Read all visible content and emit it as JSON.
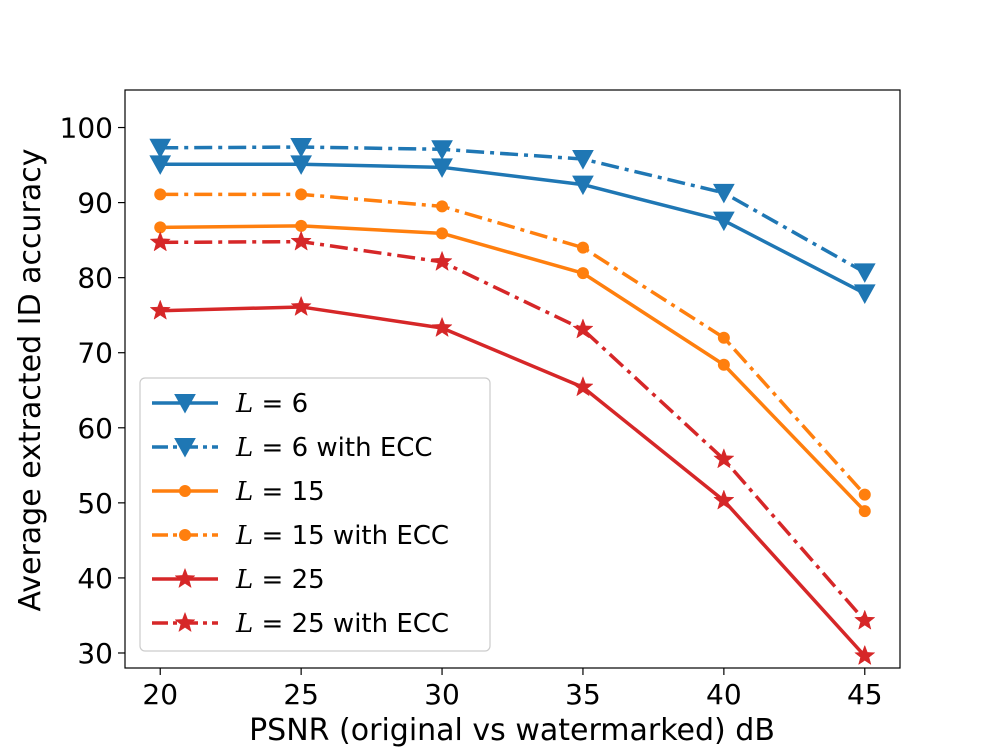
{
  "chart_data": {
    "type": "line",
    "title": "",
    "xlabel": "PSNR (original vs watermarked) dB",
    "ylabel": "Average extracted ID accuracy",
    "x": [
      20,
      25,
      30,
      35,
      40,
      45
    ],
    "xlim": [
      18.75,
      46.25
    ],
    "ylim": [
      28,
      105
    ],
    "xticks": [
      20,
      25,
      30,
      35,
      40,
      45
    ],
    "yticks": [
      30,
      40,
      50,
      60,
      70,
      80,
      90,
      100
    ],
    "grid": false,
    "legend_position": "lower-left",
    "series": [
      {
        "name": "L = 6",
        "label_var": "L",
        "label_rest": " = 6",
        "color": "#1f77b4",
        "style": "solid",
        "marker": "triangle-down",
        "values": [
          95.1,
          95.1,
          94.7,
          92.4,
          87.6,
          77.9
        ]
      },
      {
        "name": "L = 6 with ECC",
        "label_var": "L",
        "label_rest": " = 6 with ECC",
        "color": "#1f77b4",
        "style": "dashdot",
        "marker": "triangle-down",
        "values": [
          97.3,
          97.4,
          97.1,
          95.8,
          91.3,
          80.7
        ]
      },
      {
        "name": "L = 15",
        "label_var": "L",
        "label_rest": " = 15",
        "color": "#ff7f0e",
        "style": "solid",
        "marker": "circle",
        "values": [
          86.7,
          86.9,
          85.9,
          80.6,
          68.4,
          48.9
        ]
      },
      {
        "name": "L = 15 with ECC",
        "label_var": "L",
        "label_rest": " = 15 with ECC",
        "color": "#ff7f0e",
        "style": "dashdot",
        "marker": "circle",
        "values": [
          91.1,
          91.1,
          89.5,
          84.0,
          72.0,
          51.1
        ]
      },
      {
        "name": "L = 25",
        "label_var": "L",
        "label_rest": " = 25",
        "color": "#d62728",
        "style": "solid",
        "marker": "star",
        "values": [
          75.6,
          76.1,
          73.3,
          65.4,
          50.3,
          29.6
        ]
      },
      {
        "name": "L = 25 with ECC",
        "label_var": "L",
        "label_rest": " = 25 with ECC",
        "color": "#d62728",
        "style": "dashdot",
        "marker": "star",
        "values": [
          84.7,
          84.8,
          82.1,
          73.1,
          55.8,
          34.3
        ]
      }
    ]
  }
}
